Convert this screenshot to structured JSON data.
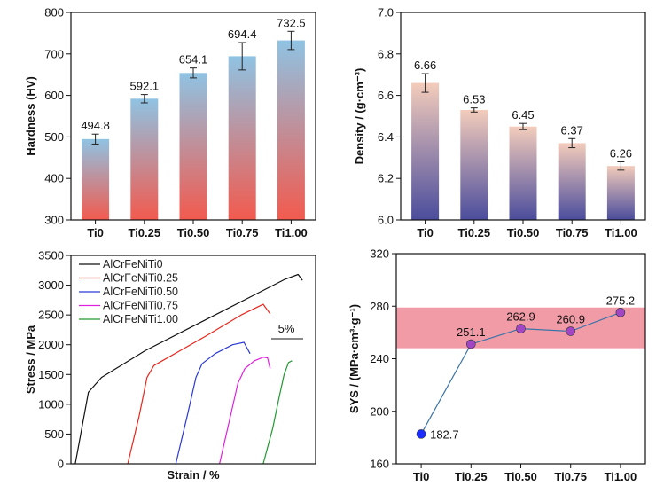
{
  "chart_data": [
    {
      "id": "hardness",
      "type": "bar",
      "categories": [
        "Ti0",
        "Ti0.25",
        "Ti0.50",
        "Ti0.75",
        "Ti1.00"
      ],
      "values": [
        494.8,
        592.1,
        654.1,
        694.4,
        732.5
      ],
      "value_labels": [
        "494.8",
        "592.1",
        "654.1",
        "694.4",
        "732.5"
      ],
      "errors": [
        12,
        10,
        12,
        33,
        22
      ],
      "ylabel": "Hardness (HV)",
      "ylim": [
        300,
        800
      ],
      "yticks": [
        300,
        400,
        500,
        600,
        700,
        800
      ],
      "gradient_colors": {
        "top": "#8fc3e3",
        "bottom": "#f25a4e"
      },
      "grid": false
    },
    {
      "id": "density",
      "type": "bar",
      "categories": [
        "Ti0",
        "Ti0.25",
        "Ti0.50",
        "Ti0.75",
        "Ti1.00"
      ],
      "values": [
        6.66,
        6.53,
        6.45,
        6.37,
        6.26
      ],
      "value_labels": [
        "6.66",
        "6.53",
        "6.45",
        "6.37",
        "6.26"
      ],
      "errors": [
        0.045,
        0.01,
        0.015,
        0.022,
        0.02
      ],
      "ylabel": "Density / (g·cm⁻³)",
      "ylim": [
        6.0,
        7.0
      ],
      "yticks": [
        "6.0",
        "6.2",
        "6.4",
        "6.6",
        "6.8",
        "7.0"
      ],
      "gradient_colors": {
        "top": "#f3ccbb",
        "bottom": "#4a4c9c"
      },
      "grid": false
    },
    {
      "id": "stress_strain",
      "type": "line",
      "xlabel": "Strain / %",
      "ylabel": "Stress / MPa",
      "ylim": [
        0,
        3500
      ],
      "yticks": [
        0,
        500,
        1000,
        1500,
        2000,
        2500,
        3000,
        3500
      ],
      "x_axis_tick_labels": false,
      "scale_bar_label": "5%",
      "series": [
        {
          "name": "AlCrFeNiTi0",
          "color": "#111111",
          "points": [
            [
              0,
              0
            ],
            [
              1.5,
              1200
            ],
            [
              3,
              1450
            ],
            [
              8,
              1900
            ],
            [
              14,
              2350
            ],
            [
              20,
              2800
            ],
            [
              24,
              3100
            ],
            [
              25.5,
              3180
            ],
            [
              26,
              3080
            ]
          ]
        },
        {
          "name": "AlCrFeNiTi0.25",
          "color": "#e8261c",
          "points": [
            [
              6,
              0
            ],
            [
              7.3,
              800
            ],
            [
              8.2,
              1450
            ],
            [
              9,
              1650
            ],
            [
              12,
              1900
            ],
            [
              15,
              2150
            ],
            [
              19,
              2500
            ],
            [
              21.5,
              2680
            ],
            [
              22.3,
              2520
            ]
          ]
        },
        {
          "name": "AlCrFeNiTi0.50",
          "color": "#2b39d6",
          "points": [
            [
              11.5,
              0
            ],
            [
              12.8,
              800
            ],
            [
              13.8,
              1450
            ],
            [
              14.5,
              1680
            ],
            [
              16,
              1850
            ],
            [
              18,
              2000
            ],
            [
              19.3,
              2040
            ],
            [
              20,
              1850
            ]
          ]
        },
        {
          "name": "AlCrFeNiTi0.75",
          "color": "#e21fe0",
          "points": [
            [
              16.5,
              0
            ],
            [
              17.6,
              700
            ],
            [
              18.6,
              1350
            ],
            [
              19.4,
              1600
            ],
            [
              20.5,
              1730
            ],
            [
              21.5,
              1790
            ],
            [
              22,
              1780
            ],
            [
              22.3,
              1600
            ]
          ]
        },
        {
          "name": "AlCrFeNiTi1.00",
          "color": "#1f9a2e",
          "points": [
            [
              21.5,
              0
            ],
            [
              22.6,
              600
            ],
            [
              23.3,
              1100
            ],
            [
              23.9,
              1500
            ],
            [
              24.4,
              1700
            ],
            [
              24.8,
              1730
            ]
          ]
        }
      ]
    },
    {
      "id": "sys",
      "type": "line",
      "categories": [
        "Ti0",
        "Ti0.25",
        "Ti0.50",
        "Ti0.75",
        "Ti1.00"
      ],
      "values": [
        182.7,
        251.1,
        262.9,
        260.9,
        275.2
      ],
      "value_labels": [
        "182.7",
        "251.1",
        "262.9",
        "260.9",
        "275.2"
      ],
      "ylabel": "SYS / (MPa·cm³·g⁻¹)",
      "ylim": [
        160,
        320
      ],
      "yticks": [
        160,
        200,
        240,
        280,
        320
      ],
      "band": [
        248,
        279
      ],
      "band_color": "#ef8a98",
      "line_color": "#3c73a8",
      "first_point_color": "#1a2cff",
      "point_color": "#a246c6"
    }
  ]
}
